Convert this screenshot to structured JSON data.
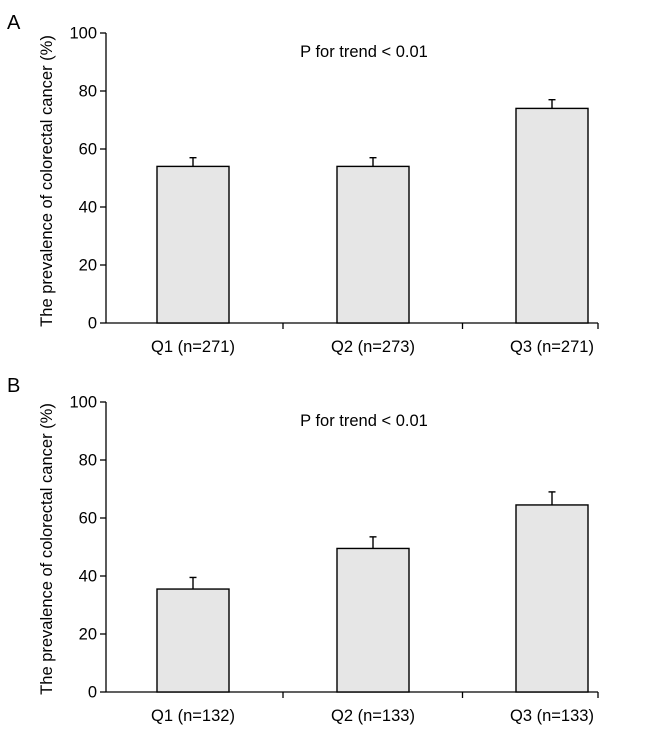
{
  "colors": {
    "bar_fill": "#e6e6e6",
    "stroke": "#000000",
    "background": "#ffffff"
  },
  "chart_data": [
    {
      "panel_label": "A",
      "type": "bar",
      "ylabel": "The prevalence of colorectal cancer (%)",
      "annotation": "P for trend < 0.01",
      "ylim": [
        0,
        100
      ],
      "yticks": [
        0,
        20,
        40,
        60,
        80,
        100
      ],
      "categories": [
        "Q1 (n=271)",
        "Q2 (n=273)",
        "Q3 (n=271)"
      ],
      "values": [
        54,
        54,
        74
      ],
      "errors": [
        3,
        3,
        3
      ]
    },
    {
      "panel_label": "B",
      "type": "bar",
      "ylabel": "The prevalence of colorectal cancer (%)",
      "annotation": "P for trend < 0.01",
      "ylim": [
        0,
        100
      ],
      "yticks": [
        0,
        20,
        40,
        60,
        80,
        100
      ],
      "categories": [
        "Q1 (n=132)",
        "Q2 (n=133)",
        "Q3 (n=133)"
      ],
      "values": [
        35.5,
        49.5,
        64.5
      ],
      "errors": [
        4,
        4,
        4.5
      ]
    }
  ]
}
